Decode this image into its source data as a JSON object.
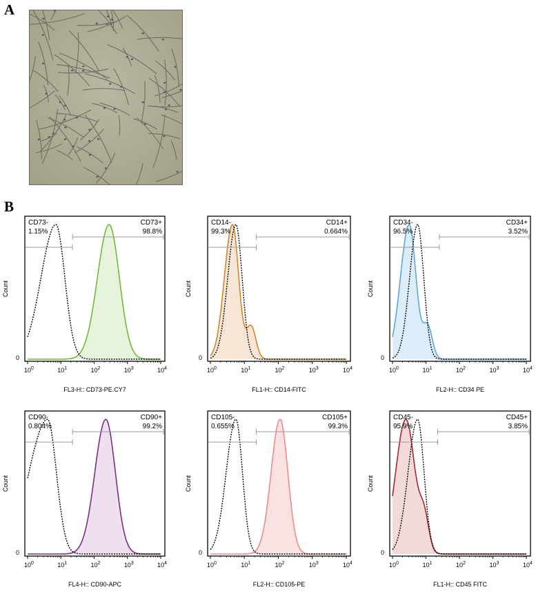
{
  "figure": {
    "panel_a_label": "A",
    "panel_b_label": "B"
  },
  "chart_data": [
    {
      "type": "histogram-overlay",
      "marker": "CD73",
      "xlabel": "FL3-H:: CD73-PE.CY7",
      "ylabel": "Count",
      "y_tick": "0",
      "x_ticks": [
        "10",
        "10",
        "10",
        "10",
        "10"
      ],
      "x_tick_exponents": [
        "0",
        "1",
        "2",
        "3",
        "4"
      ],
      "negative_label": "CD73-",
      "negative_pct": "1.15%",
      "positive_label": "CD73+",
      "positive_pct": "98.8%",
      "gate_split_log": 1.35,
      "isotype_peak_log": 0.85,
      "isotype_width": 0.32,
      "isotype_skew": 0.4,
      "stain_peak_log": 2.45,
      "stain_width": 0.32,
      "stain_skew": 0.1,
      "stain_shoulder": 0,
      "color": "#6fba3c",
      "fill": "#e8f3dc"
    },
    {
      "type": "histogram-overlay",
      "marker": "CD14",
      "xlabel": "FL1-H:: CD14-FITC",
      "ylabel": "Count",
      "y_tick": "0",
      "x_ticks": [
        "10",
        "10",
        "10",
        "10",
        "10"
      ],
      "x_tick_exponents": [
        "0",
        "1",
        "2",
        "3",
        "4"
      ],
      "negative_label": "CD14-",
      "negative_pct": "99.3%",
      "positive_label": "CD14+",
      "positive_pct": "0.664%",
      "gate_split_log": 1.35,
      "isotype_peak_log": 0.75,
      "isotype_width": 0.2,
      "isotype_skew": 0.2,
      "stain_peak_log": 0.65,
      "stain_width": 0.2,
      "stain_skew": 0.2,
      "stain_shoulder": 1,
      "color": "#d4862a",
      "fill": "#f7e6d6"
    },
    {
      "type": "histogram-overlay",
      "marker": "CD34",
      "xlabel": "FL2-H:: CD34 PE",
      "ylabel": "Count",
      "y_tick": "0",
      "x_ticks": [
        "10",
        "10",
        "10",
        "10",
        "10"
      ],
      "x_tick_exponents": [
        "0",
        "1",
        "2",
        "3",
        "4"
      ],
      "negative_label": "CD34-",
      "negative_pct": "96.5%",
      "positive_label": "CD34+",
      "positive_pct": "3.52%",
      "gate_split_log": 1.4,
      "isotype_peak_log": 0.75,
      "isotype_width": 0.2,
      "isotype_skew": 0.2,
      "stain_peak_log": 0.5,
      "stain_width": 0.22,
      "stain_skew": 0.2,
      "stain_shoulder": 1,
      "color": "#5ba7d8",
      "fill": "#dcecf8"
    },
    {
      "type": "histogram-overlay",
      "marker": "CD90",
      "xlabel": "FL4-H:: CD90-APC",
      "ylabel": "Count",
      "y_tick": "0",
      "x_ticks": [
        "10",
        "10",
        "10",
        "10",
        "10"
      ],
      "x_tick_exponents": [
        "0",
        "1",
        "2",
        "3",
        "4"
      ],
      "negative_label": "CD90-",
      "negative_pct": "0.804%",
      "positive_label": "CD90+",
      "positive_pct": "99.2%",
      "gate_split_log": 1.35,
      "isotype_peak_log": 0.6,
      "isotype_width": 0.35,
      "isotype_skew": 0.6,
      "stain_peak_log": 2.35,
      "stain_width": 0.3,
      "stain_skew": 0.1,
      "stain_shoulder": 0,
      "color": "#7b2d82",
      "fill": "#eee0ee"
    },
    {
      "type": "histogram-overlay",
      "marker": "CD105",
      "xlabel": "FL2-H:: CD105-PE",
      "ylabel": "Count",
      "y_tick": "0",
      "x_ticks": [
        "10",
        "10",
        "10",
        "10",
        "10"
      ],
      "x_tick_exponents": [
        "0",
        "1",
        "2",
        "3",
        "4"
      ],
      "negative_label": "CD105-",
      "negative_pct": "0.655%",
      "positive_label": "CD105+",
      "positive_pct": "99.3%",
      "gate_split_log": 1.35,
      "isotype_peak_log": 0.75,
      "isotype_width": 0.22,
      "isotype_skew": 0.3,
      "stain_peak_log": 2.05,
      "stain_width": 0.24,
      "stain_skew": 0.1,
      "stain_shoulder": 0,
      "color": "#ee8a8c",
      "fill": "#fbe2e2"
    },
    {
      "type": "histogram-overlay",
      "marker": "CD45",
      "xlabel": "FL1-H:: CD45 FITC",
      "ylabel": "Count",
      "y_tick": "0",
      "x_ticks": [
        "10",
        "10",
        "10",
        "10",
        "10"
      ],
      "x_tick_exponents": [
        "0",
        "1",
        "2",
        "3",
        "4"
      ],
      "negative_label": "CD45-",
      "negative_pct": "95.9%",
      "positive_label": "CD45+",
      "positive_pct": "3.85%",
      "gate_split_log": 1.35,
      "isotype_peak_log": 0.75,
      "isotype_width": 0.22,
      "isotype_skew": 0.3,
      "stain_peak_log": 0.4,
      "stain_width": 0.28,
      "stain_skew": 0.1,
      "stain_shoulder": 1,
      "color": "#a8262c",
      "fill": "#f3d9da"
    }
  ]
}
